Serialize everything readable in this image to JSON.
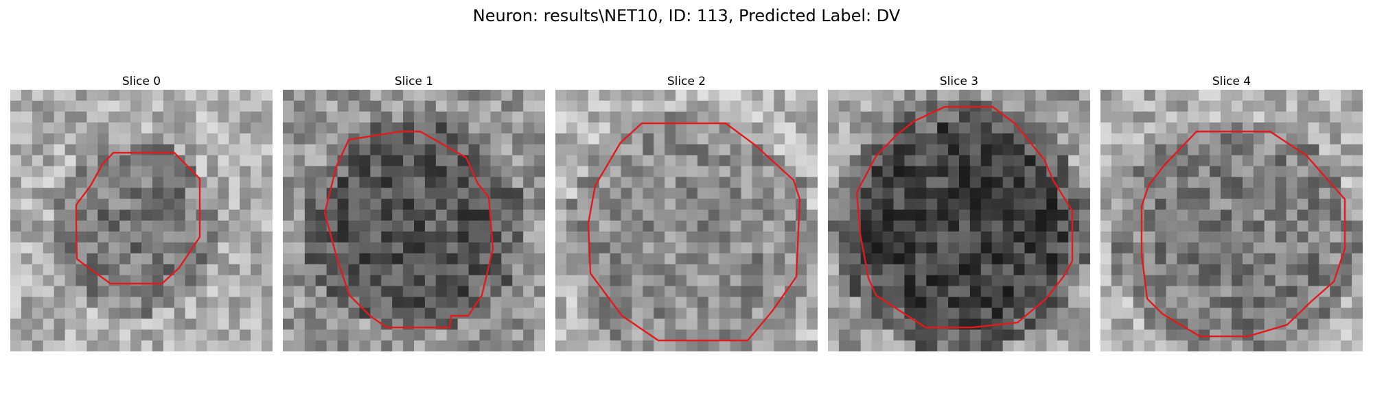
{
  "figure": {
    "title": "Neuron: results\\NET10, ID: 113, Predicted Label: DV"
  },
  "panels": [
    {
      "title": "Slice 0",
      "contour_color": "#e31a1c"
    },
    {
      "title": "Slice 1",
      "contour_color": "#e31a1c"
    },
    {
      "title": "Slice 2",
      "contour_color": "#e31a1c"
    },
    {
      "title": "Slice 3",
      "contour_color": "#e31a1c"
    },
    {
      "title": "Slice 4",
      "contour_color": "#e31a1c"
    }
  ]
}
